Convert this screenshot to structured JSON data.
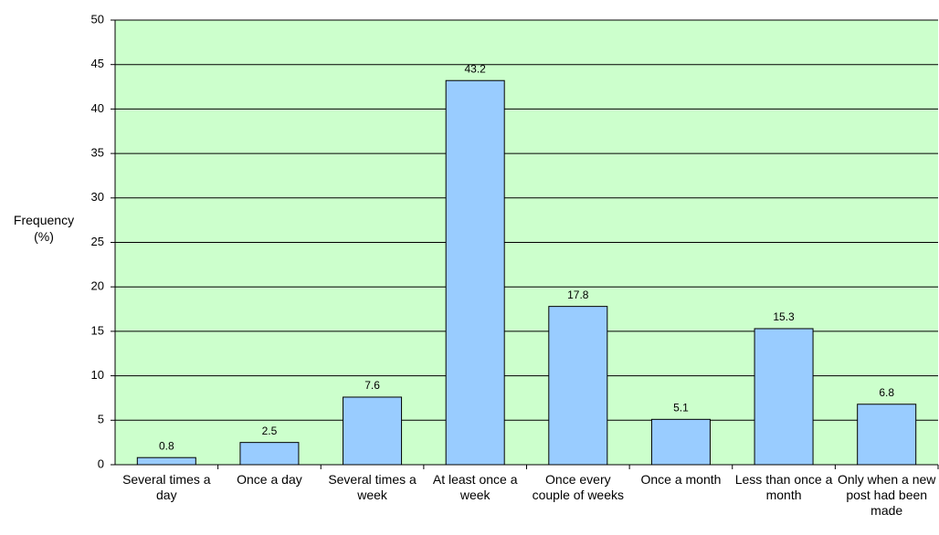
{
  "chart_data": {
    "type": "bar",
    "y_label": "Frequency (%)",
    "categories": [
      "Several times a day",
      "Once a day",
      "Several times a week",
      "At least once a week",
      "Once every couple of weeks",
      "Once a month",
      "Less than once a month",
      "Only when a new post had been made"
    ],
    "values": [
      0.8,
      2.5,
      7.6,
      43.2,
      17.8,
      5.1,
      15.3,
      6.8
    ],
    "color": "#99ccff",
    "background": "#ccffcc",
    "ylim": [
      0,
      50
    ],
    "yticks": [
      0,
      5,
      10,
      15,
      20,
      25,
      30,
      35,
      40,
      45,
      50
    ],
    "grid": true
  }
}
